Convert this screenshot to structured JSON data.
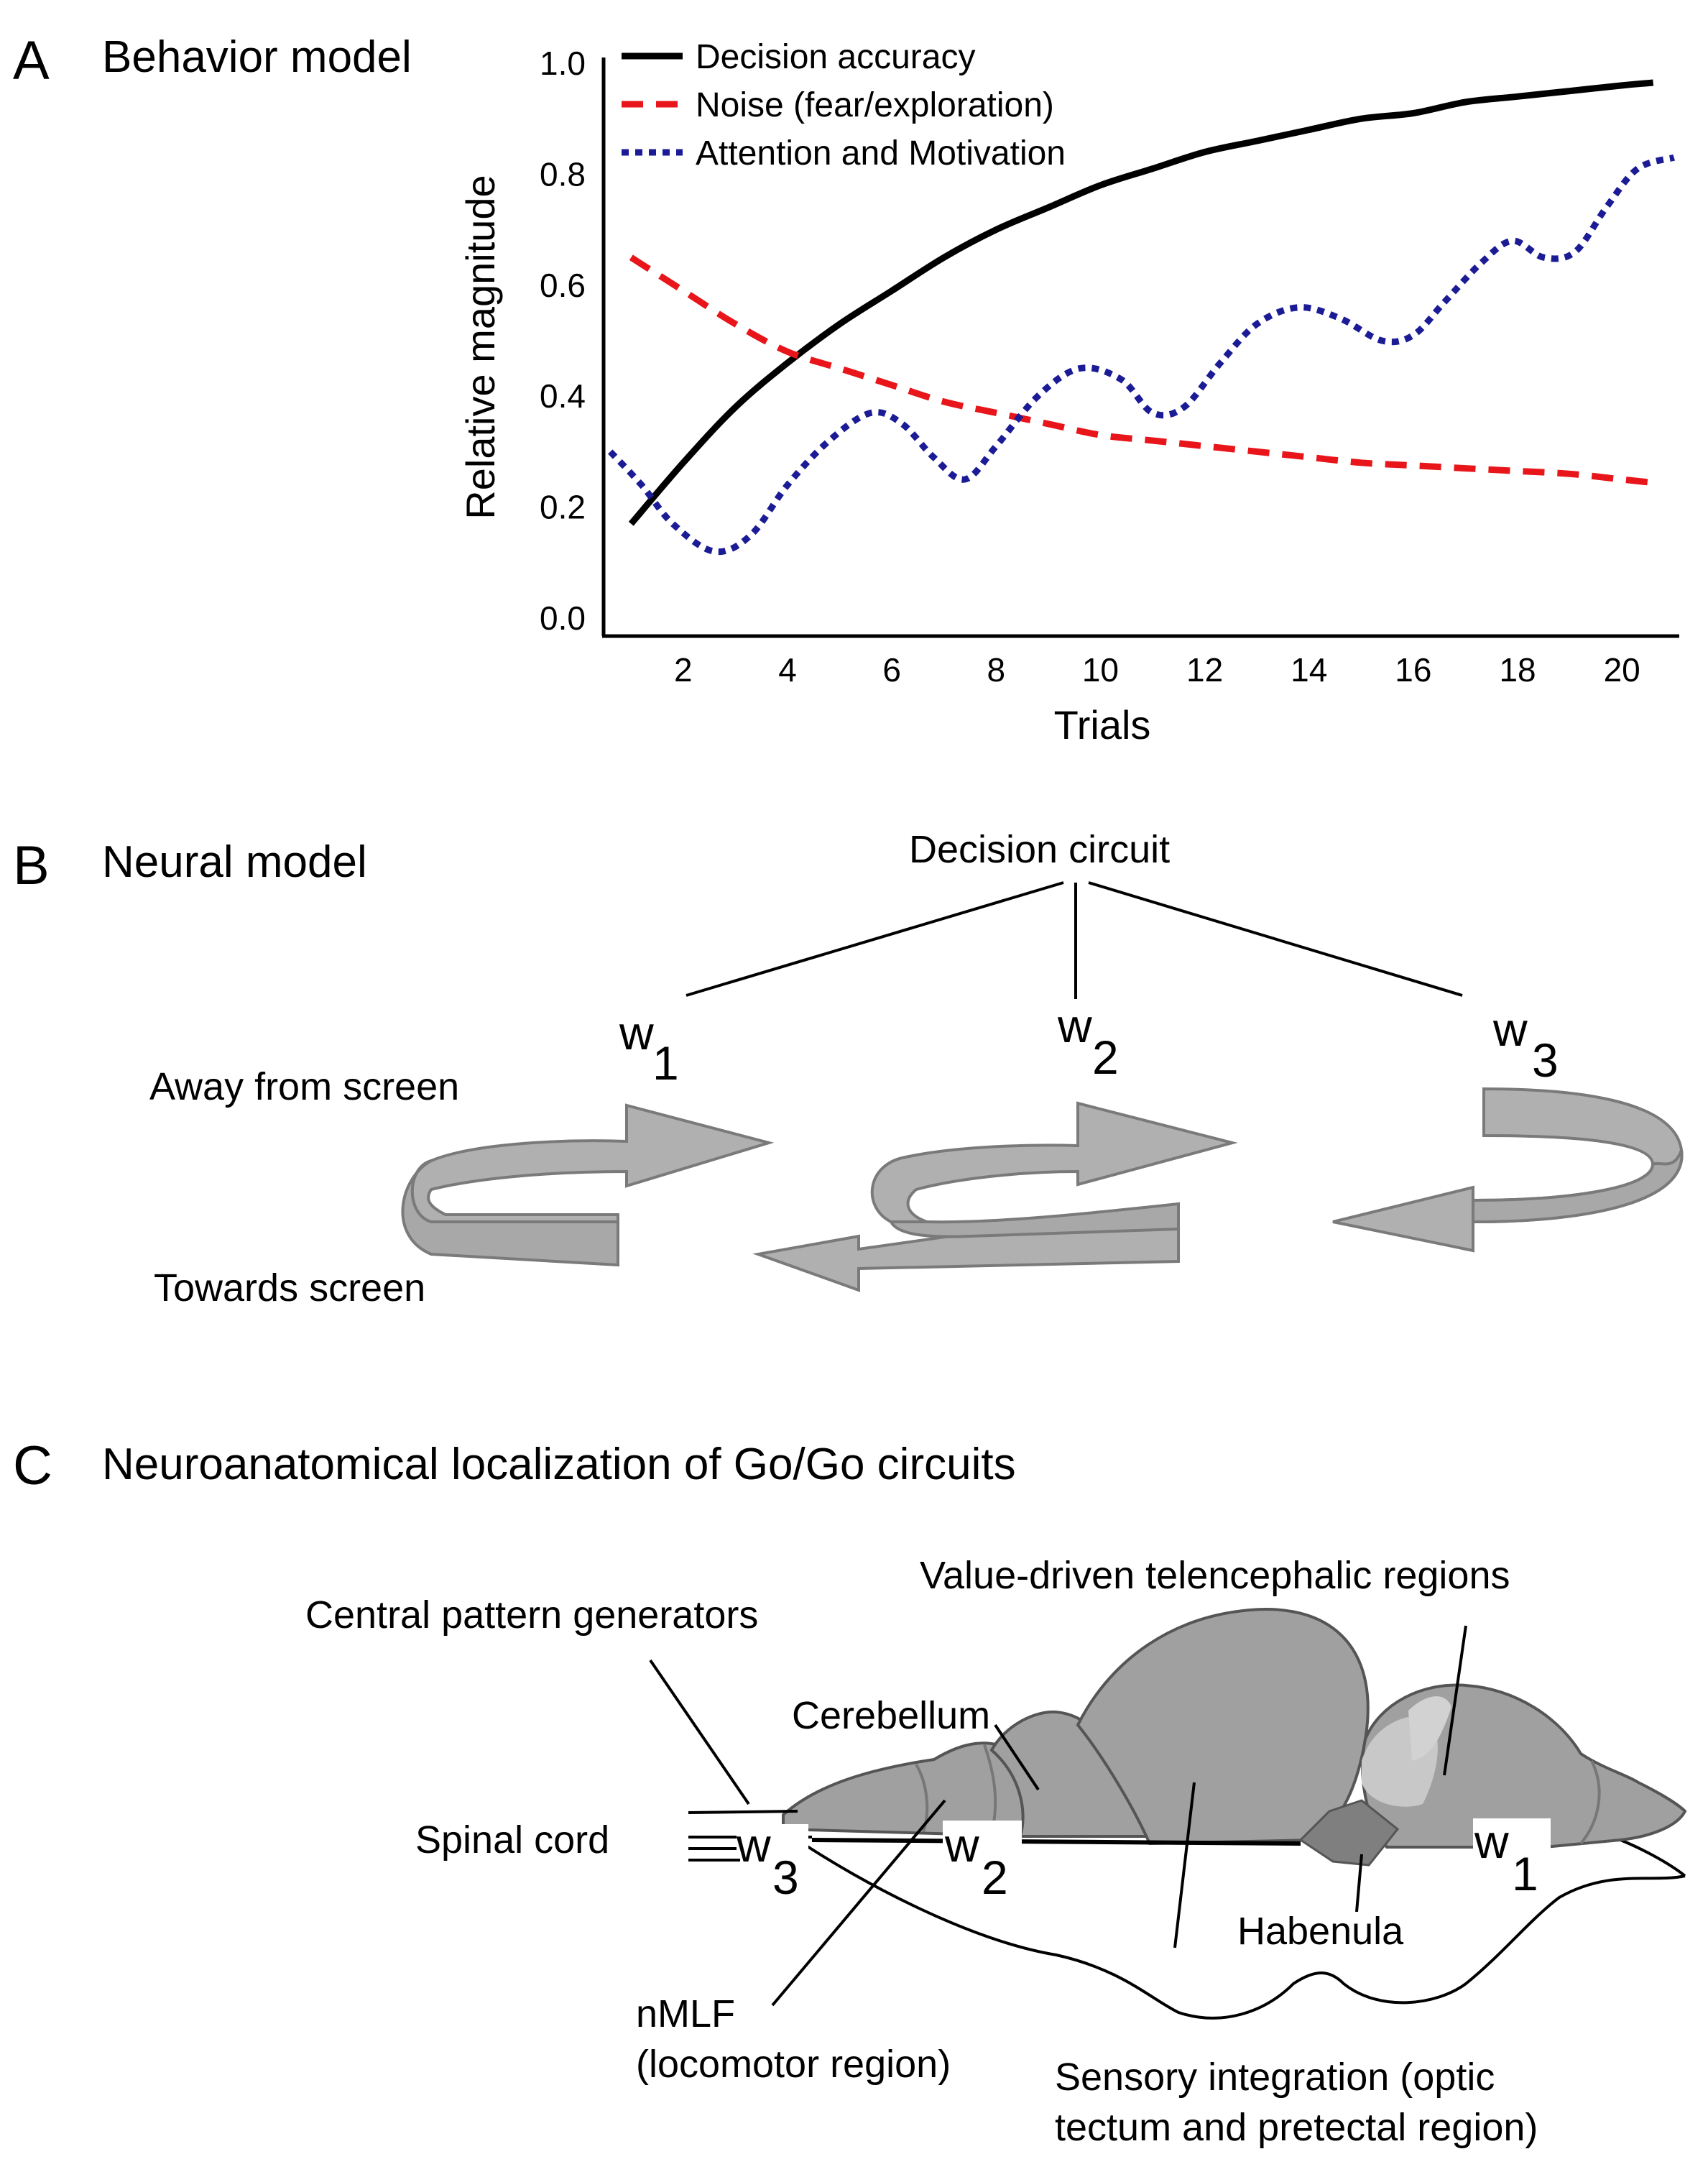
{
  "colors": {
    "decision": "#000000",
    "noise": "#e8151a",
    "attention": "#1b1b96",
    "arrow_fill": "#b0b0b0",
    "arrow_stroke": "#7a7a7a",
    "brain_fill": "#a0a0a0",
    "brain_stroke": "#555555"
  },
  "panel_a": {
    "letter": "A",
    "title": "Behavior model"
  },
  "chart_data": {
    "type": "line",
    "title": "Behavior model",
    "xlabel": "Trials",
    "ylabel": "Relative magnitude",
    "xlim": [
      0.5,
      21.1
    ],
    "ylim": [
      0.0,
      1.0
    ],
    "x_ticks": [
      2,
      4,
      6,
      8,
      10,
      12,
      14,
      16,
      18,
      20
    ],
    "y_ticks": [
      "0.0",
      "0.2",
      "0.4",
      "0.6",
      "0.8",
      "1.0"
    ],
    "legend_position": "top",
    "series": [
      {
        "name": "Decision accuracy",
        "style": "solid",
        "x": [
          1,
          2,
          3,
          4,
          5,
          6,
          7,
          8,
          9,
          10,
          11,
          12,
          13,
          14,
          15,
          16,
          17,
          18,
          19,
          20,
          20.6
        ],
        "y": [
          0.17,
          0.28,
          0.38,
          0.46,
          0.53,
          0.59,
          0.65,
          0.7,
          0.74,
          0.78,
          0.81,
          0.84,
          0.86,
          0.88,
          0.9,
          0.91,
          0.93,
          0.94,
          0.95,
          0.96,
          0.965
        ]
      },
      {
        "name": "Noise (fear/exploration)",
        "style": "dashed",
        "x": [
          1,
          2,
          3,
          4,
          5,
          6,
          7,
          8,
          9,
          10,
          11,
          12,
          13,
          14,
          15,
          16,
          17,
          18,
          19,
          20,
          20.5
        ],
        "y": [
          0.65,
          0.59,
          0.53,
          0.48,
          0.45,
          0.42,
          0.39,
          0.37,
          0.35,
          0.33,
          0.32,
          0.31,
          0.3,
          0.29,
          0.28,
          0.275,
          0.27,
          0.265,
          0.26,
          0.25,
          0.245
        ]
      },
      {
        "name": "Attention and Motivation",
        "style": "dotted",
        "x": [
          0.6,
          1.2,
          1.8,
          2.6,
          3.3,
          4.0,
          4.8,
          5.6,
          6.2,
          6.8,
          7.4,
          8.0,
          8.8,
          9.6,
          10.4,
          11.0,
          11.6,
          12.3,
          13.0,
          13.8,
          14.6,
          15.4,
          16.0,
          16.6,
          17.3,
          17.9,
          18.5,
          19.1,
          19.7,
          20.3,
          21.0
        ],
        "y": [
          0.3,
          0.24,
          0.17,
          0.12,
          0.15,
          0.24,
          0.32,
          0.37,
          0.35,
          0.29,
          0.25,
          0.31,
          0.4,
          0.45,
          0.43,
          0.37,
          0.38,
          0.46,
          0.53,
          0.56,
          0.54,
          0.5,
          0.51,
          0.57,
          0.64,
          0.68,
          0.65,
          0.66,
          0.74,
          0.81,
          0.83
        ]
      }
    ]
  },
  "panel_b": {
    "letter": "B",
    "title": "Neural model",
    "decision_circuit": "Decision circuit",
    "w_letter": "w",
    "w1_sub": "1",
    "w2_sub": "2",
    "w3_sub": "3",
    "away_label": "Away from screen",
    "towards_label": "Towards screen"
  },
  "panel_c": {
    "letter": "C",
    "title": "Neuroanatomical localization of Go/Go circuits",
    "labels": {
      "value_driven": "Value-driven telencephalic regions",
      "cpg": "Central pattern generators",
      "cerebellum": "Cerebellum",
      "spinal_cord": "Spinal cord",
      "habenula": "Habenula",
      "nmlf_line1": "nMLF",
      "nmlf_line2": "(locomotor region)",
      "sensory_line1": "Sensory integration (optic",
      "sensory_line2": "tectum and pretectal region)"
    },
    "w_letter": "w",
    "w1_sub": "1",
    "w2_sub": "2",
    "w3_sub": "3"
  }
}
